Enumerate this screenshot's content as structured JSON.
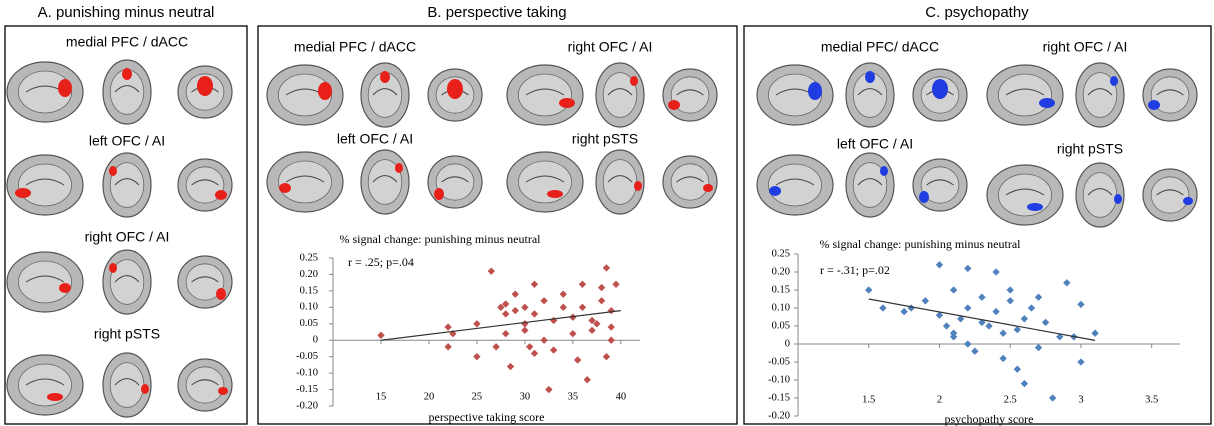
{
  "panels": [
    {
      "title": "A. punishing minus neutral",
      "blob_color": "#e8201a",
      "regions": [
        "medial PFC / dACC",
        "left OFC / AI",
        "right OFC / AI",
        "right pSTS"
      ]
    },
    {
      "title": "B. perspective taking",
      "blob_color": "#e8201a",
      "regions": [
        "medial PFC / dACC",
        "right OFC / AI",
        "left OFC / AI",
        "right pSTS"
      ]
    },
    {
      "title": "C. psychopathy",
      "blob_color": "#1f3de0",
      "regions": [
        "medial PFC/ dACC",
        "right OFC / AI",
        "left OFC / AI",
        "right pSTS"
      ]
    }
  ],
  "chart_data": [
    {
      "type": "scatter",
      "title": "% signal change: punishing minus neutral",
      "annotation": "r = .25; p=.04",
      "x_label": "perspective taking score",
      "color": "#c0504d",
      "x": [
        15,
        22,
        22.5,
        22,
        25,
        25,
        26.5,
        27,
        27.5,
        28,
        28,
        28,
        28.5,
        29,
        29,
        30,
        30,
        30,
        30.5,
        31,
        31,
        31,
        32,
        32,
        32.5,
        33,
        33,
        34,
        34,
        35,
        35,
        35.5,
        36,
        36,
        36.5,
        37,
        37,
        37.5,
        38,
        38,
        38.5,
        38.5,
        39,
        39,
        39.5,
        39
      ],
      "values": [
        0.015,
        0.04,
        0.02,
        -0.02,
        0.05,
        -0.05,
        0.21,
        -0.02,
        0.1,
        0.08,
        0.11,
        0.02,
        -0.08,
        0.14,
        0.09,
        0.1,
        0.05,
        0.03,
        -0.02,
        0.17,
        0.08,
        -0.04,
        0.12,
        0,
        -0.15,
        0.06,
        -0.03,
        0.14,
        0.1,
        0.07,
        0.02,
        -0.06,
        0.17,
        0.1,
        -0.12,
        0.06,
        0.03,
        0.05,
        0.16,
        0.12,
        0.22,
        -0.05,
        0.09,
        0.04,
        0.17,
        0
      ],
      "fit": {
        "x": [
          15,
          40
        ],
        "y": [
          0,
          0.09
        ]
      },
      "xlim": [
        10,
        42
      ],
      "ylim": [
        -0.2,
        0.25
      ],
      "xticks": [
        15,
        20,
        25,
        30,
        35,
        40
      ],
      "yticks": [
        {
          "value": -0.2,
          "label": "-0.20"
        },
        {
          "value": -0.15,
          "label": "-0.15"
        },
        {
          "value": -0.1,
          "label": "-0.10"
        },
        {
          "value": -0.05,
          "label": "-0.05"
        },
        0,
        {
          "value": 0.05,
          "label": "0.05"
        },
        {
          "value": 0.1,
          "label": "0.10"
        },
        {
          "value": 0.15,
          "label": "0.15"
        },
        {
          "value": 0.2,
          "label": "0.20"
        },
        {
          "value": 0.25,
          "label": "0.25"
        }
      ]
    },
    {
      "type": "scatter",
      "title": "% signal change: punishing minus neutral",
      "annotation": "r = -.31; p=.02",
      "x_label": "psychopathy score",
      "color": "#4f81bd",
      "x": [
        1.5,
        1.6,
        1.75,
        1.8,
        1.9,
        2.0,
        2.0,
        2.05,
        2.1,
        2.1,
        2.1,
        2.15,
        2.2,
        2.2,
        2.2,
        2.25,
        2.3,
        2.3,
        2.35,
        2.4,
        2.4,
        2.45,
        2.45,
        2.5,
        2.5,
        2.55,
        2.55,
        2.6,
        2.6,
        2.65,
        2.7,
        2.7,
        2.75,
        2.8,
        2.85,
        2.9,
        2.95,
        3.0,
        3.0,
        3.1
      ],
      "values": [
        0.15,
        0.1,
        0.09,
        0.1,
        0.12,
        0.22,
        0.08,
        0.05,
        0.15,
        0.03,
        0.02,
        0.07,
        0.21,
        0.1,
        0,
        -0.02,
        0.13,
        0.06,
        0.05,
        0.2,
        0.09,
        0.03,
        -0.04,
        0.15,
        0.12,
        -0.07,
        0.04,
        -0.11,
        0.07,
        0.1,
        0.13,
        -0.01,
        0.06,
        -0.15,
        0.02,
        0.17,
        0.02,
        -0.05,
        0.11,
        0.03
      ],
      "fit": {
        "x": [
          1.5,
          3.1
        ],
        "y": [
          0.125,
          0.01
        ]
      },
      "xlim": [
        1,
        3.7
      ],
      "ylim": [
        -0.2,
        0.25
      ],
      "xticks": [
        1.5,
        2,
        2.5,
        3,
        3.5
      ],
      "yticks": [
        {
          "value": -0.2,
          "label": "-0.20"
        },
        {
          "value": -0.15,
          "label": "-0.15"
        },
        {
          "value": -0.1,
          "label": "-0.10"
        },
        {
          "value": -0.05,
          "label": "-0.05"
        },
        0,
        {
          "value": 0.05,
          "label": "0.05"
        },
        {
          "value": 0.1,
          "label": "0.10"
        },
        {
          "value": 0.15,
          "label": "0.15"
        },
        {
          "value": 0.2,
          "label": "0.20"
        },
        {
          "value": 0.25,
          "label": "0.25"
        }
      ]
    }
  ]
}
